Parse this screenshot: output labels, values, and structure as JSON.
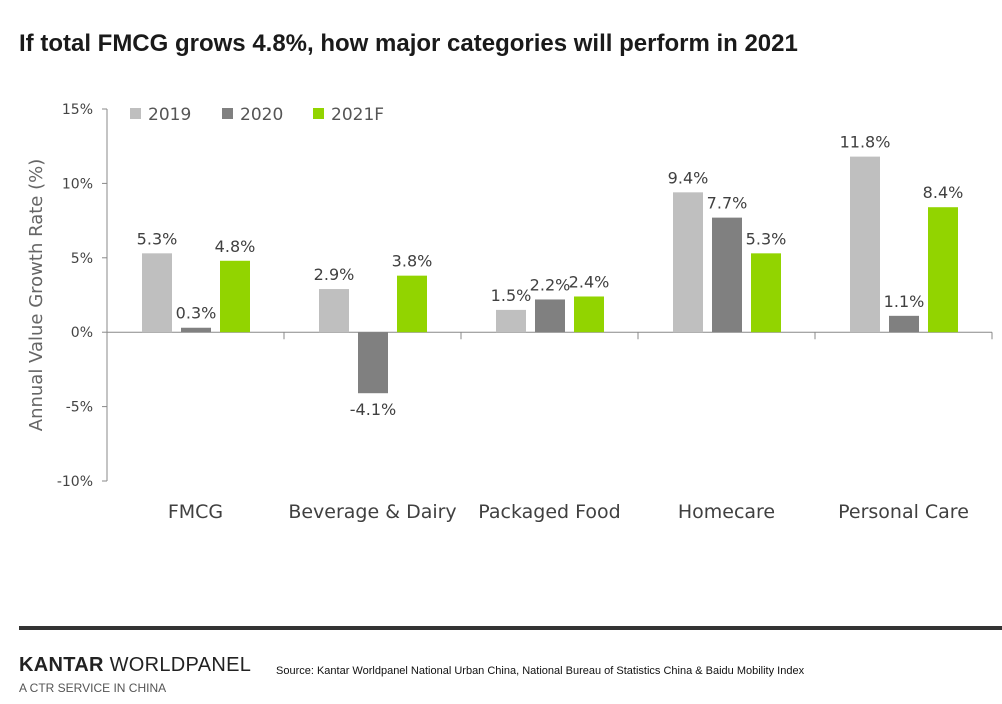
{
  "title": "If total FMCG grows 4.8%, how major categories will perform in 2021",
  "chart_data": {
    "type": "bar",
    "title": "If total FMCG grows 4.8%, how major categories will perform in 2021",
    "categories": [
      "FMCG",
      "Beverage & Dairy",
      "Packaged Food",
      "Homecare",
      "Personal Care"
    ],
    "series": [
      {
        "name": "2019",
        "color": "#bfbfbf",
        "values": [
          5.3,
          2.9,
          1.5,
          9.4,
          11.8
        ],
        "labels": [
          "5.3%",
          "2.9%",
          "1.5%",
          "9.4%",
          "11.8%"
        ]
      },
      {
        "name": "2020",
        "color": "#808080",
        "values": [
          0.3,
          -4.1,
          2.2,
          7.7,
          1.1
        ],
        "labels": [
          "0.3%",
          "-4.1%",
          "2.2%",
          "7.7%",
          "1.1%"
        ]
      },
      {
        "name": "2021F",
        "color": "#92d400",
        "values": [
          4.8,
          3.8,
          2.4,
          5.3,
          8.4
        ],
        "labels": [
          "4.8%",
          "3.8%",
          "2.4%",
          "5.3%",
          "8.4%"
        ]
      }
    ],
    "xlabel": "",
    "ylabel": "Annual Value Growth Rate (%)",
    "ylim": [
      -10,
      15
    ],
    "yticks": [
      15,
      10,
      5,
      0,
      -5,
      -10
    ],
    "ytick_labels": [
      "15%",
      "10%",
      "5%",
      "0%",
      "-5%",
      "-10%"
    ],
    "grid": false,
    "legend": "top-left"
  },
  "footer": {
    "logo_bold": "KANTAR",
    "logo_rest": " WORLDPANEL",
    "logo_sub": "A CTR SERVICE IN CHINA",
    "source": "Source: Kantar Worldpanel National Urban China, National Bureau of Statistics China & Baidu Mobility Index"
  }
}
